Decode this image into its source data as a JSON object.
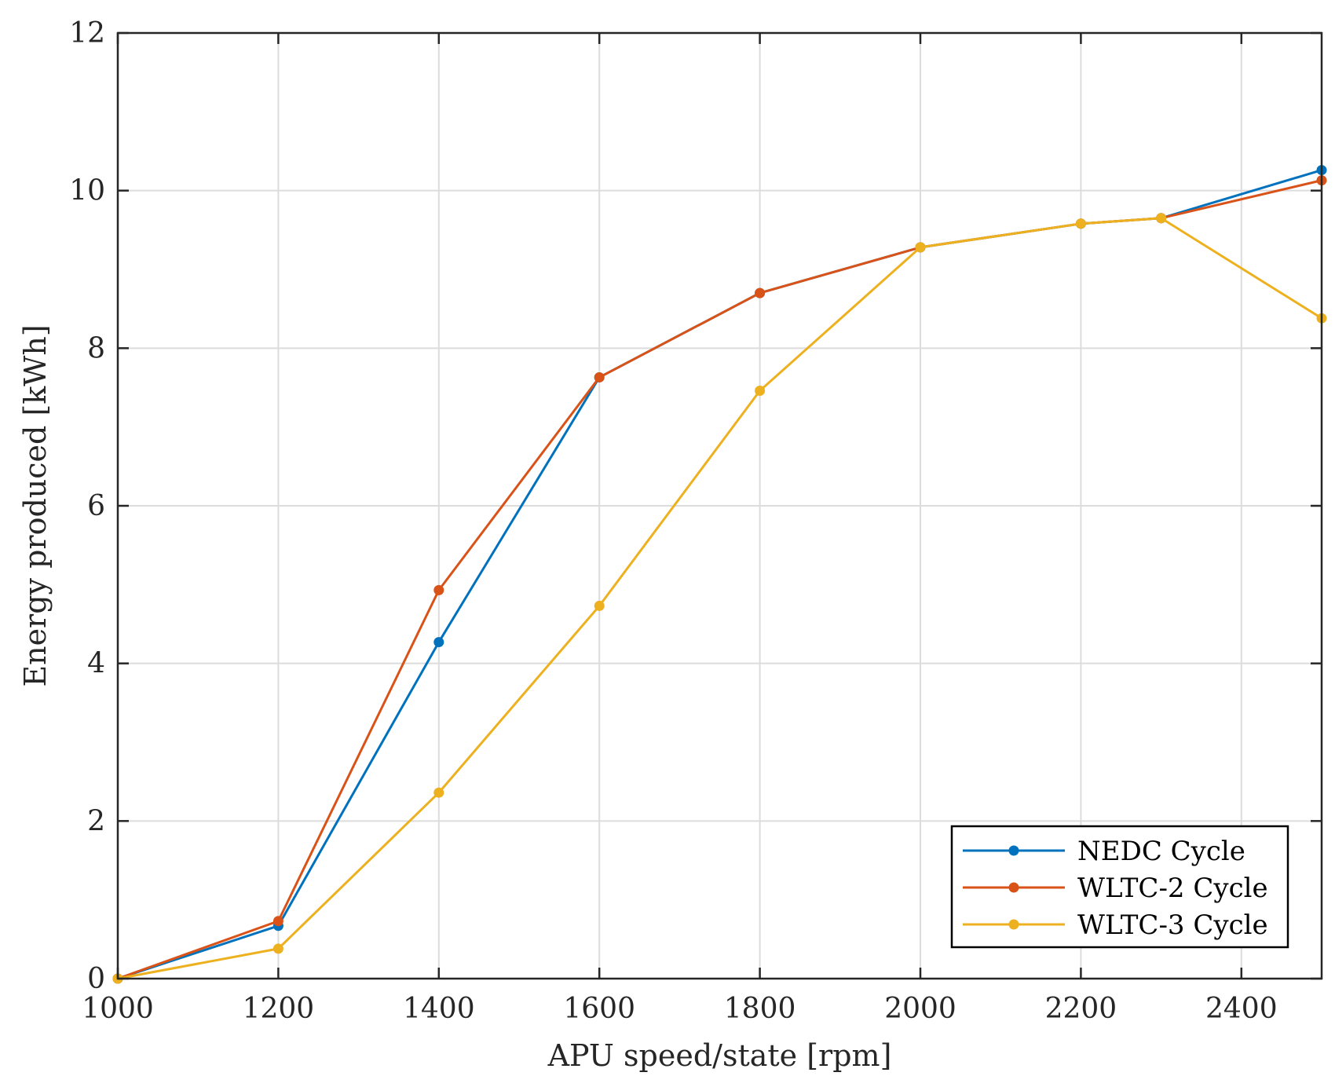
{
  "chart_data": {
    "type": "line",
    "title": "",
    "xlabel": "APU speed/state [rpm]",
    "ylabel": "Energy produced [kWh]",
    "xlim": [
      1000,
      2500
    ],
    "ylim": [
      0,
      12
    ],
    "xticks": [
      1000,
      1200,
      1400,
      1600,
      1800,
      2000,
      2200,
      2400
    ],
    "yticks": [
      0,
      2,
      4,
      6,
      8,
      10,
      12
    ],
    "grid": true,
    "legend_position": "bottom-right",
    "x": [
      1000,
      1200,
      1400,
      1600,
      1800,
      2000,
      2200,
      2300,
      2500
    ],
    "series": [
      {
        "name": "NEDC Cycle",
        "color": "#0072BD",
        "values": [
          0,
          0.67,
          4.27,
          7.63,
          8.7,
          9.28,
          9.58,
          9.65,
          10.26
        ]
      },
      {
        "name": "WLTC-2 Cycle",
        "color": "#D95319",
        "values": [
          0,
          0.73,
          4.93,
          7.63,
          8.7,
          9.28,
          9.58,
          9.65,
          10.13
        ]
      },
      {
        "name": "WLTC-3 Cycle",
        "color": "#EDB120",
        "values": [
          0,
          0.38,
          2.36,
          4.73,
          7.46,
          9.28,
          9.58,
          9.65,
          8.38
        ]
      }
    ]
  }
}
